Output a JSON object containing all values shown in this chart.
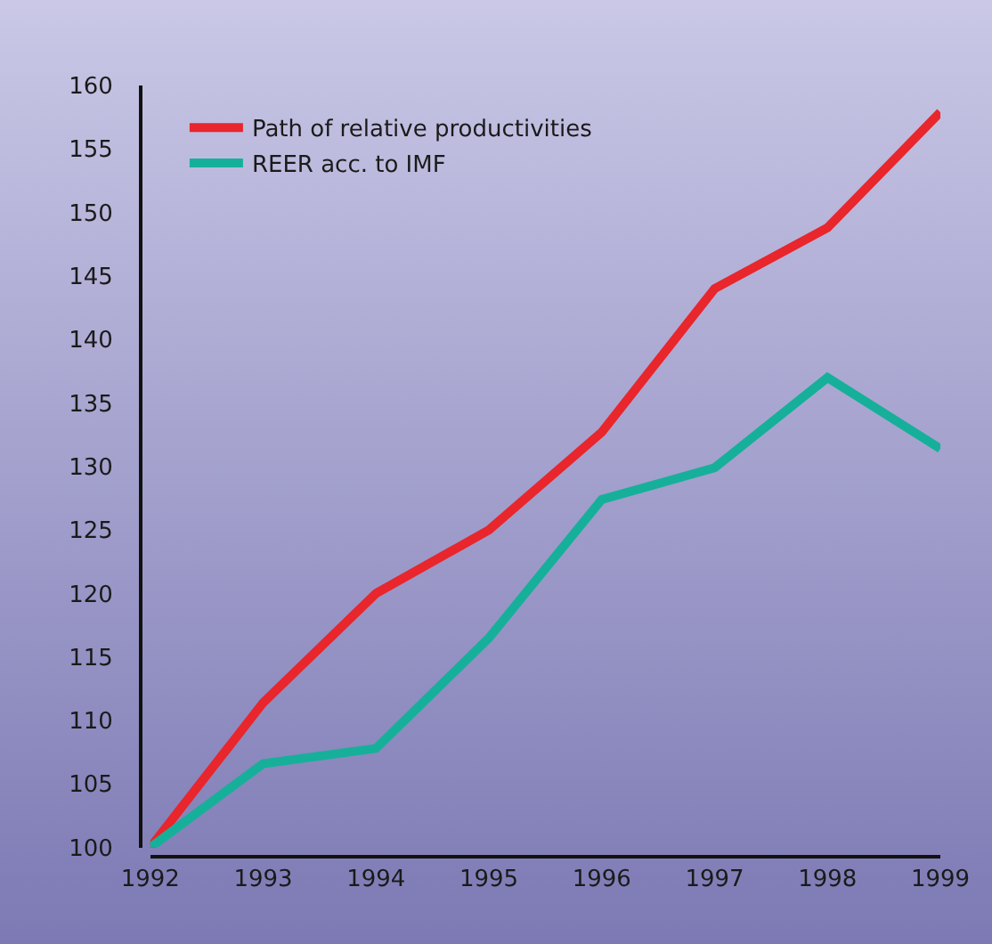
{
  "chart_data": {
    "type": "line",
    "x": [
      1992,
      1993,
      1994,
      1995,
      1996,
      1997,
      1998,
      1999
    ],
    "series": [
      {
        "name": "Path of relative productivities",
        "color": "#e8262c",
        "values": [
          100,
          111.4,
          120,
          125,
          132.7,
          144,
          148.8,
          157.9
        ]
      },
      {
        "name": "REER acc. to IMF",
        "color": "#16b09a",
        "values": [
          100,
          106.6,
          107.8,
          116.5,
          127.4,
          129.9,
          137,
          131.4
        ]
      }
    ],
    "xlim": [
      1992,
      1999
    ],
    "xticks": [
      1992,
      1993,
      1994,
      1995,
      1996,
      1997,
      1998,
      1999
    ],
    "ylim": [
      100,
      160
    ],
    "yticks": [
      100,
      105,
      110,
      115,
      120,
      125,
      130,
      135,
      140,
      145,
      150,
      155,
      160
    ],
    "grid": false,
    "legend": "top left",
    "marker": "none",
    "line_style": "solid"
  }
}
